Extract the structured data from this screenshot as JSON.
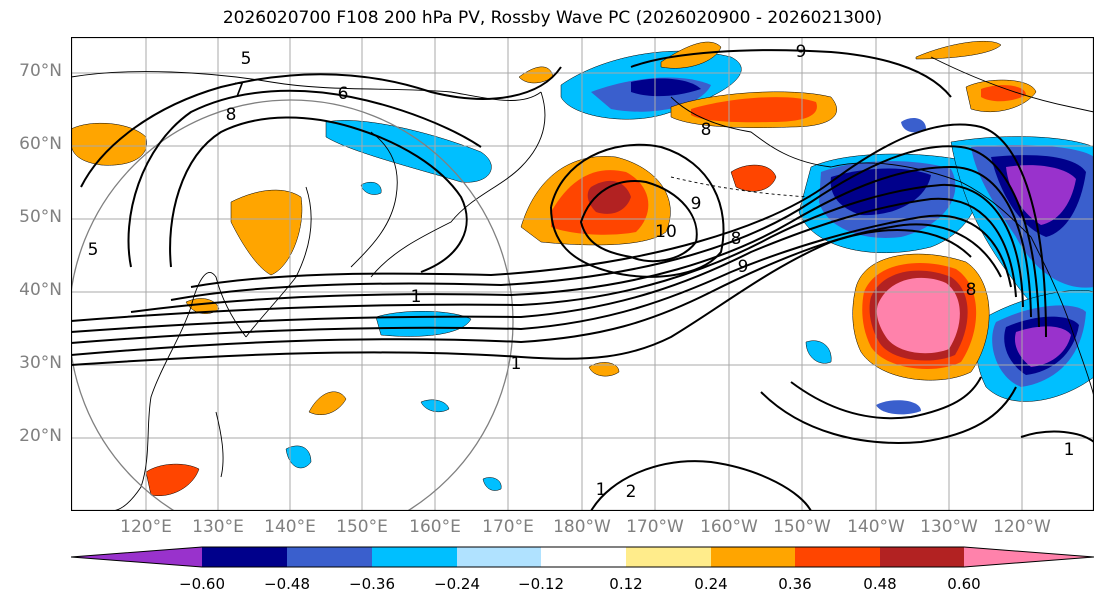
{
  "title": "2026020700 F108 200 hPa PV, Rossby Wave PC (2026020900 - 2026021300)",
  "lat_labels": [
    "70°N",
    "60°N",
    "50°N",
    "40°N",
    "30°N",
    "20°N"
  ],
  "lon_labels": [
    "120°E",
    "130°E",
    "140°E",
    "150°E",
    "160°E",
    "170°E",
    "180°W",
    "170°W",
    "160°W",
    "150°W",
    "140°W",
    "130°W",
    "120°W"
  ],
  "contour_labels": [
    "5",
    "7",
    "8",
    "6",
    "9",
    "5",
    "8",
    "9",
    "10",
    "8",
    "9",
    "1",
    "8",
    "1",
    "2",
    "1",
    "1"
  ],
  "colorbar": {
    "ticks": [
      "−0.60",
      "−0.48",
      "−0.36",
      "−0.24",
      "−0.12",
      "0.12",
      "0.24",
      "0.36",
      "0.48",
      "0.60"
    ],
    "colors": [
      "#9932cc",
      "#00008b",
      "#3a5fcd",
      "#00bfff",
      "#b0e2ff",
      "#ffffff",
      "#ffec8b",
      "#ffa500",
      "#ff4500",
      "#b22222",
      "#ff82ab"
    ]
  }
}
